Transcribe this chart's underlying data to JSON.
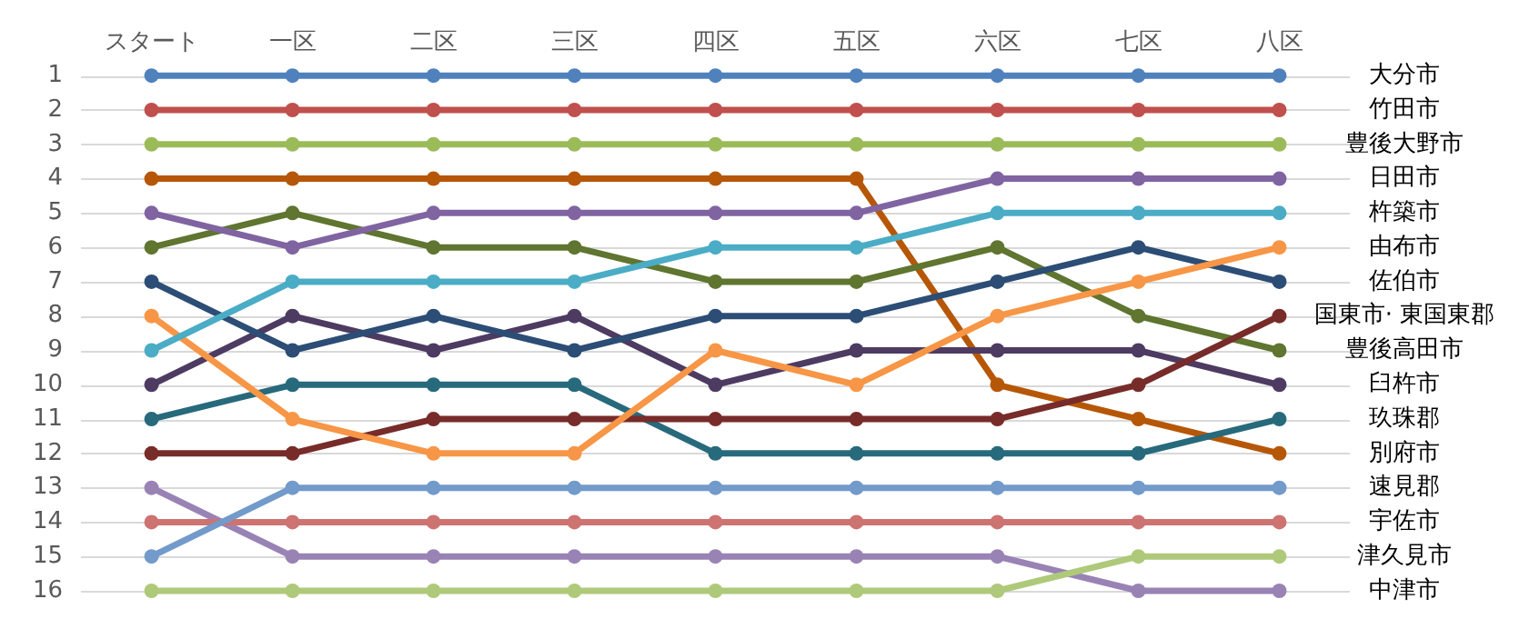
{
  "chart_data": {
    "type": "line",
    "categories": [
      "スタート",
      "一区",
      "二区",
      "三区",
      "四区",
      "五区",
      "六区",
      "七区",
      "八区"
    ],
    "ylim": [
      16,
      1
    ],
    "yticks": [
      1,
      2,
      3,
      4,
      5,
      6,
      7,
      8,
      9,
      10,
      11,
      12,
      13,
      14,
      15,
      16
    ],
    "grid": "y",
    "legend": false,
    "marker": "circle",
    "line_style": "solid",
    "series": [
      {
        "name": "大分市",
        "color": "#4f81bd",
        "values": [
          1,
          1,
          1,
          1,
          1,
          1,
          1,
          1,
          1
        ]
      },
      {
        "name": "竹田市",
        "color": "#c0504d",
        "values": [
          2,
          2,
          2,
          2,
          2,
          2,
          2,
          2,
          2
        ]
      },
      {
        "name": "豊後大野市",
        "color": "#9bbb59",
        "values": [
          3,
          3,
          3,
          3,
          3,
          3,
          3,
          3,
          3
        ]
      },
      {
        "name": "日田市",
        "color": "#8064a2",
        "values": [
          5,
          6,
          5,
          5,
          5,
          5,
          4,
          4,
          4
        ]
      },
      {
        "name": "杵築市",
        "color": "#4bacc6",
        "values": [
          9,
          7,
          7,
          7,
          6,
          6,
          5,
          5,
          5
        ]
      },
      {
        "name": "由布市",
        "color": "#f79646",
        "values": [
          8,
          11,
          12,
          12,
          9,
          10,
          8,
          7,
          6
        ]
      },
      {
        "name": "佐伯市",
        "color": "#2c4d75",
        "values": [
          7,
          9,
          8,
          9,
          8,
          8,
          7,
          6,
          7
        ]
      },
      {
        "name": "国東市· 東国東郡",
        "color": "#772c2a",
        "values": [
          12,
          12,
          11,
          11,
          11,
          11,
          11,
          10,
          8
        ]
      },
      {
        "name": "豊後高田市",
        "color": "#5f7530",
        "values": [
          6,
          5,
          6,
          6,
          7,
          7,
          6,
          8,
          9
        ]
      },
      {
        "name": "臼杵市",
        "color": "#4d3b62",
        "values": [
          10,
          8,
          9,
          8,
          10,
          9,
          9,
          9,
          10
        ]
      },
      {
        "name": "玖珠郡",
        "color": "#276a7c",
        "values": [
          11,
          10,
          10,
          10,
          12,
          12,
          12,
          12,
          11
        ]
      },
      {
        "name": "別府市",
        "color": "#b65708",
        "values": [
          4,
          4,
          4,
          4,
          4,
          4,
          10,
          11,
          12
        ]
      },
      {
        "name": "速見郡",
        "color": "#729aca",
        "values": [
          15,
          13,
          13,
          13,
          13,
          13,
          13,
          13,
          13
        ]
      },
      {
        "name": "宇佐市",
        "color": "#cd7371",
        "values": [
          14,
          14,
          14,
          14,
          14,
          14,
          14,
          14,
          14
        ]
      },
      {
        "name": "津久見市",
        "color": "#afc97a",
        "values": [
          16,
          16,
          16,
          16,
          16,
          16,
          16,
          15,
          15
        ]
      },
      {
        "name": "中津市",
        "color": "#9983b5",
        "values": [
          13,
          15,
          15,
          15,
          15,
          15,
          15,
          16,
          16
        ]
      }
    ]
  }
}
